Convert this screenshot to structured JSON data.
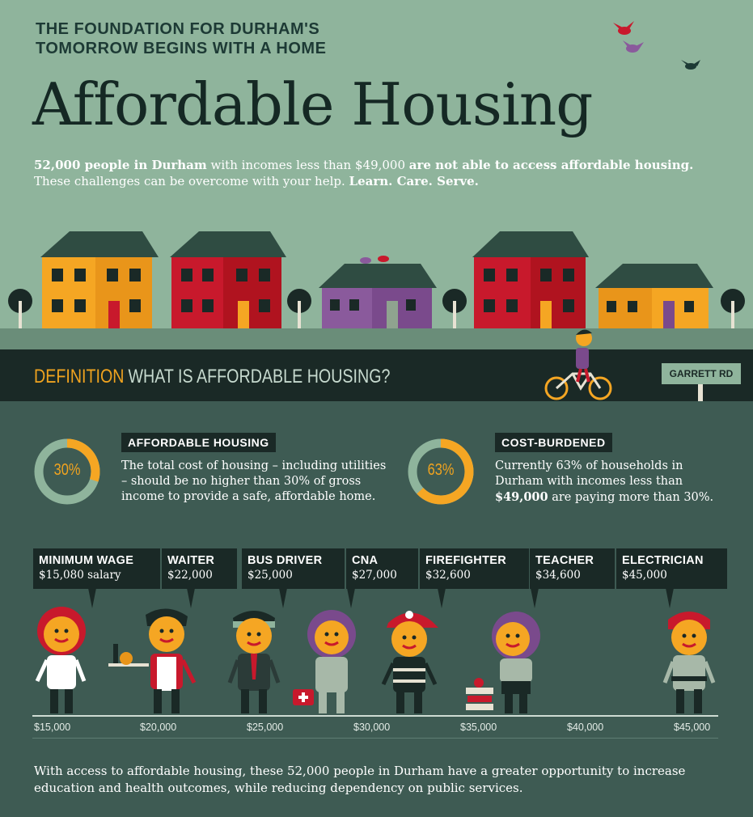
{
  "header": {
    "kicker": "THE FOUNDATION FOR DURHAM'S TOMORROW BEGINS WITH A HOME",
    "title": "Affordable Housing",
    "intro_bold_1": "52,000 people in Durham",
    "intro_1": " with incomes less than $49,000 ",
    "intro_bold_2": "are not able to access affordable housing.",
    "intro_2": " These challenges can be overcome with your help. ",
    "intro_bold_3": "Learn. Care. Serve."
  },
  "definition": {
    "prefix": "DEFINITION",
    "heading": "WHAT IS AFFORDABLE HOUSING?",
    "street_sign": "GARRETT RD",
    "cards": [
      {
        "ring_label": "30%",
        "ring_fraction": 0.3,
        "tag": "AFFORDABLE HOUSING",
        "text": "The total cost of housing – including utilities – should be no higher than 30% of gross income to provide a safe, affordable home."
      },
      {
        "ring_label": "63%",
        "ring_fraction": 0.63,
        "tag": "COST-BURDENED",
        "text_1": "Currently 63% of households in Durham with incomes less than ",
        "text_bold": "$49,000",
        "text_2": " are paying more than 30%."
      }
    ]
  },
  "jobs": [
    {
      "title": "MINIMUM WAGE",
      "salary": "$15,080 salary"
    },
    {
      "title": "WAITER",
      "salary": "$22,000"
    },
    {
      "title": "BUS DRIVER",
      "salary": "$25,000"
    },
    {
      "title": "CNA",
      "salary": "$27,000"
    },
    {
      "title": "FIREFIGHTER",
      "salary": "$32,600"
    },
    {
      "title": "TEACHER",
      "salary": "$34,600"
    },
    {
      "title": "ELECTRICIAN",
      "salary": "$45,000"
    }
  ],
  "axis_ticks": [
    "$15,000",
    "$20,000",
    "$25,000",
    "$30,000",
    "$35,000",
    "$40,000",
    "$45,000"
  ],
  "outro": "With access to affordable housing, these 52,000 people in Durham have a greater opportunity to increase education and health outcomes, while reducing dependency on public services.",
  "colors": {
    "background": "#8fb49c",
    "dark": "#1a2926",
    "accent": "#f0a31f",
    "lower_panel": "#3e5b53",
    "house_red": "#c8192c",
    "house_orange": "#f0a31f",
    "house_purple": "#7a4a8c"
  }
}
